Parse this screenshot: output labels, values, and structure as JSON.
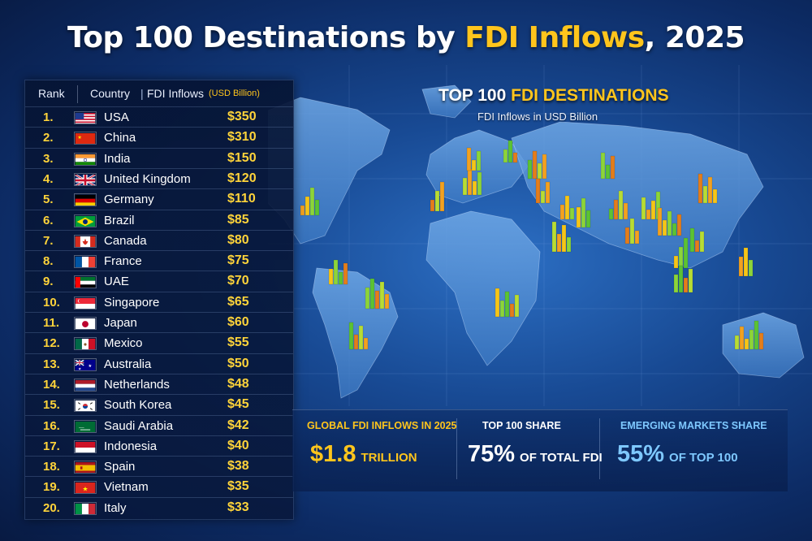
{
  "title": {
    "part1": "Top 100 Destinations by ",
    "part2": "FDI Inflows",
    "part3": ", 2025"
  },
  "table": {
    "headers": {
      "rank": "Rank",
      "country": "Country",
      "separator": "|",
      "fdi": "FDI Inflows",
      "unit": "(USD Billion)"
    },
    "rows": [
      {
        "rank": "1.",
        "country": "USA",
        "value": "$350",
        "flag": "usa"
      },
      {
        "rank": "2.",
        "country": "China",
        "value": "$310",
        "flag": "china"
      },
      {
        "rank": "3.",
        "country": "India",
        "value": "$150",
        "flag": "india"
      },
      {
        "rank": "4.",
        "country": "United Kingdom",
        "value": "$120",
        "flag": "uk"
      },
      {
        "rank": "5.",
        "country": "Germany",
        "value": "$110",
        "flag": "germany"
      },
      {
        "rank": "6.",
        "country": "Brazil",
        "value": "$85",
        "flag": "brazil"
      },
      {
        "rank": "7.",
        "country": "Canada",
        "value": "$80",
        "flag": "canada"
      },
      {
        "rank": "8.",
        "country": "France",
        "value": "$75",
        "flag": "france"
      },
      {
        "rank": "9.",
        "country": "UAE",
        "value": "$70",
        "flag": "uae"
      },
      {
        "rank": "10.",
        "country": "Singapore",
        "value": "$65",
        "flag": "singapore"
      },
      {
        "rank": "11.",
        "country": "Japan",
        "value": "$60",
        "flag": "japan"
      },
      {
        "rank": "12.",
        "country": "Mexico",
        "value": "$55",
        "flag": "mexico"
      },
      {
        "rank": "13.",
        "country": "Australia",
        "value": "$50",
        "flag": "australia"
      },
      {
        "rank": "14.",
        "country": "Netherlands",
        "value": "$48",
        "flag": "netherlands"
      },
      {
        "rank": "15.",
        "country": "South Korea",
        "value": "$45",
        "flag": "southkorea"
      },
      {
        "rank": "16.",
        "country": "Saudi Arabia",
        "value": "$42",
        "flag": "saudi"
      },
      {
        "rank": "17.",
        "country": "Indonesia",
        "value": "$40",
        "flag": "indonesia"
      },
      {
        "rank": "18.",
        "country": "Spain",
        "value": "$38",
        "flag": "spain"
      },
      {
        "rank": "19.",
        "country": "Vietnam",
        "value": "$35",
        "flag": "vietnam"
      },
      {
        "rank": "20.",
        "country": "Italy",
        "value": "$33",
        "flag": "italy"
      }
    ]
  },
  "map": {
    "title_white": "TOP 100 ",
    "title_yellow": "FDI DESTINATIONS",
    "subtitle": "FDI Inflows in USD Billion"
  },
  "stats": {
    "global": {
      "label": "GLOBAL FDI INFLOWS IN 2025",
      "value": "$1.8",
      "suffix": "TRILLION"
    },
    "share": {
      "label": "TOP 100 SHARE",
      "value": "75%",
      "suffix": "OF TOTAL FDI"
    },
    "emerging": {
      "label": "EMERGING MARKETS SHARE",
      "value": "55%",
      "suffix": "OF TOP 100"
    }
  },
  "colors": {
    "accent_yellow": "#ffc51c",
    "stat_blue": "#7ec8ff",
    "bar_green": "#5cc234",
    "bar_orange": "#f2a121"
  }
}
